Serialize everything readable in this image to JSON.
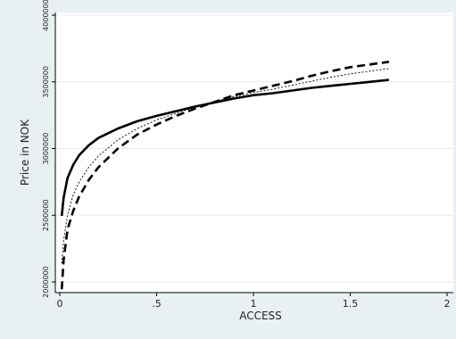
{
  "chart_data": {
    "type": "line",
    "title": "",
    "xlabel": "ACCESS",
    "ylabel": "Price in NOK",
    "xlim": [
      0,
      2
    ],
    "ylim": [
      1920000,
      4020000
    ],
    "x_ticks": [
      {
        "value": 0,
        "label": "0"
      },
      {
        "value": 0.5,
        "label": ".5"
      },
      {
        "value": 1,
        "label": "1"
      },
      {
        "value": 1.5,
        "label": "1.5"
      },
      {
        "value": 2,
        "label": "2"
      }
    ],
    "y_ticks": [
      {
        "value": 2000000,
        "label": "2000000"
      },
      {
        "value": 2500000,
        "label": "2500000"
      },
      {
        "value": 3000000,
        "label": "3000000"
      },
      {
        "value": 3500000,
        "label": "3500000"
      },
      {
        "value": 4000000,
        "label": "4000000"
      }
    ],
    "grid": "horizontal",
    "legend": "none",
    "series": [
      {
        "style": "solid-thick",
        "color": "#000000",
        "x": [
          0.01,
          0.02,
          0.04,
          0.07,
          0.1,
          0.15,
          0.2,
          0.3,
          0.4,
          0.5,
          0.6,
          0.7,
          0.8,
          0.9,
          1.0,
          1.1,
          1.2,
          1.3,
          1.4,
          1.5,
          1.6,
          1.7
        ],
        "y": [
          2495000,
          2630000,
          2780000,
          2880000,
          2950000,
          3025000,
          3080000,
          3150000,
          3205000,
          3245000,
          3280000,
          3315000,
          3345000,
          3375000,
          3400000,
          3415000,
          3435000,
          3455000,
          3470000,
          3485000,
          3500000,
          3515000
        ]
      },
      {
        "style": "dotted-thin",
        "color": "#000000",
        "x": [
          0.01,
          0.02,
          0.04,
          0.07,
          0.1,
          0.15,
          0.2,
          0.3,
          0.4,
          0.5,
          0.6,
          0.7,
          0.8,
          0.9,
          1.0,
          1.1,
          1.2,
          1.3,
          1.4,
          1.5,
          1.6,
          1.7
        ],
        "y": [
          2140000,
          2310000,
          2505000,
          2655000,
          2750000,
          2860000,
          2945000,
          3065000,
          3150000,
          3215000,
          3265000,
          3310000,
          3355000,
          3390000,
          3420000,
          3445000,
          3475000,
          3505000,
          3535000,
          3560000,
          3580000,
          3600000
        ]
      },
      {
        "style": "dashed-thick",
        "color": "#000000",
        "x": [
          0.01,
          0.02,
          0.04,
          0.07,
          0.1,
          0.15,
          0.2,
          0.3,
          0.4,
          0.5,
          0.6,
          0.7,
          0.8,
          0.9,
          1.0,
          1.1,
          1.2,
          1.3,
          1.4,
          1.5,
          1.6,
          1.7
        ],
        "y": [
          1945000,
          2165000,
          2395000,
          2535000,
          2640000,
          2765000,
          2860000,
          3000000,
          3105000,
          3180000,
          3245000,
          3300000,
          3350000,
          3400000,
          3435000,
          3470000,
          3505000,
          3545000,
          3580000,
          3610000,
          3630000,
          3650000
        ]
      }
    ]
  }
}
